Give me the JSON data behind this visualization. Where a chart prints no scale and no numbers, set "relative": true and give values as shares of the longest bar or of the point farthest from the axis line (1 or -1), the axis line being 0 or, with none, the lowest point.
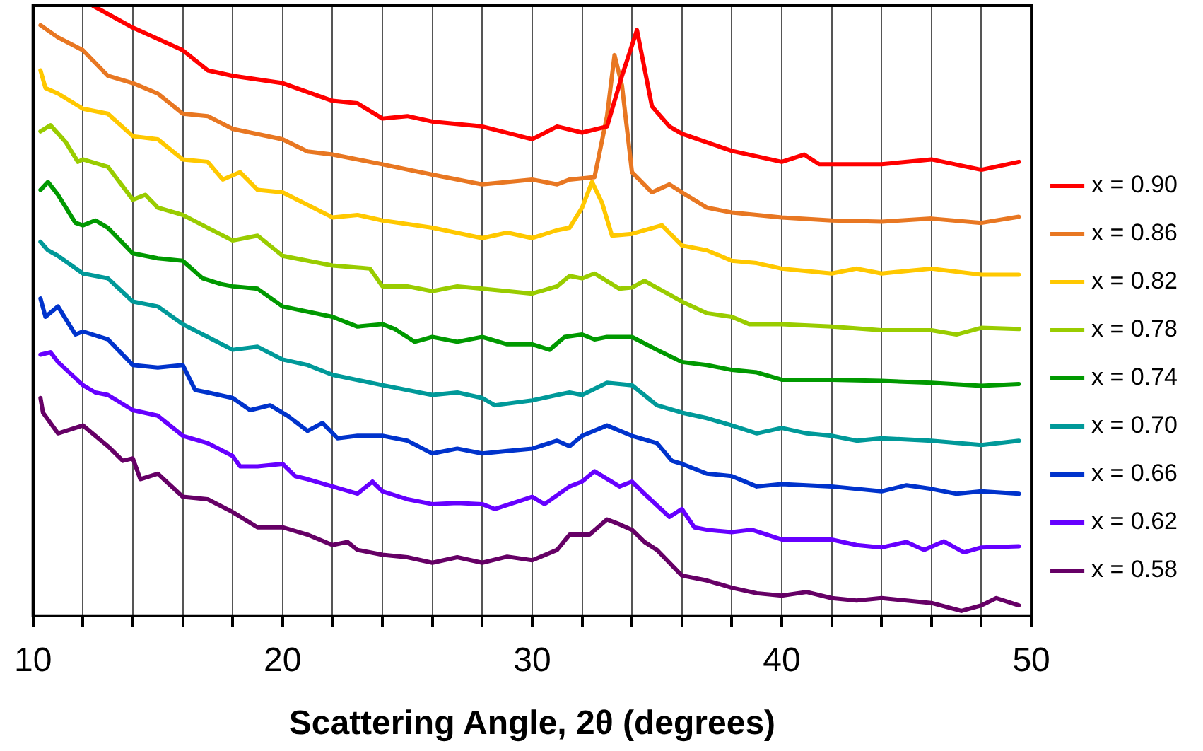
{
  "chart_data": {
    "type": "line",
    "relative": true,
    "xlabel": "Scattering Angle, 2θ (degrees)",
    "xlim": [
      10,
      50
    ],
    "xticks": [
      10,
      {
        "value": 12,
        "label": null
      },
      {
        "value": 14,
        "label": null
      },
      {
        "value": 16,
        "label": null
      },
      {
        "value": 18,
        "label": null
      },
      20,
      {
        "value": 22,
        "label": null
      },
      {
        "value": 24,
        "label": null
      },
      {
        "value": 26,
        "label": null
      },
      {
        "value": 28,
        "label": null
      },
      30,
      {
        "value": 32,
        "label": null
      },
      {
        "value": 34,
        "label": null
      },
      {
        "value": 36,
        "label": null
      },
      {
        "value": 38,
        "label": null
      },
      40,
      {
        "value": 42,
        "label": null
      },
      {
        "value": 44,
        "label": null
      },
      {
        "value": 46,
        "label": null
      },
      {
        "value": 48,
        "label": null
      },
      50
    ],
    "grid": "x",
    "legend": "right",
    "marker": "none",
    "line_style": "solid",
    "series": [
      {
        "name": "x = 0.90",
        "color": "#ff0000",
        "x": [
          12.4,
          14,
          16,
          17,
          18,
          20,
          22,
          23,
          24,
          25,
          26,
          28,
          30,
          31,
          32,
          33,
          33.6,
          34.2,
          34.8,
          35.5,
          36,
          38,
          40,
          40.9,
          41.5,
          44,
          46,
          48,
          49.5
        ],
        "values": [
          1.0,
          0.964,
          0.927,
          0.894,
          0.885,
          0.873,
          0.844,
          0.84,
          0.815,
          0.819,
          0.81,
          0.802,
          0.781,
          0.802,
          0.792,
          0.802,
          0.885,
          0.96,
          0.835,
          0.802,
          0.79,
          0.762,
          0.744,
          0.756,
          0.74,
          0.74,
          0.748,
          0.731,
          0.744
        ]
      },
      {
        "name": "x = 0.86",
        "color": "#e87722",
        "x": [
          10.3,
          11,
          12,
          13,
          14,
          15,
          16,
          17,
          18,
          20,
          21,
          22,
          24,
          26,
          28,
          30,
          31,
          31.5,
          32.5,
          33,
          33.3,
          33.6,
          34,
          34.8,
          35.5,
          36,
          37,
          38,
          40,
          42,
          44,
          46,
          48,
          49.5
        ],
        "values": [
          0.968,
          0.948,
          0.927,
          0.885,
          0.873,
          0.856,
          0.823,
          0.819,
          0.798,
          0.781,
          0.761,
          0.756,
          0.74,
          0.723,
          0.707,
          0.715,
          0.707,
          0.715,
          0.719,
          0.819,
          0.919,
          0.869,
          0.727,
          0.694,
          0.707,
          0.694,
          0.669,
          0.661,
          0.653,
          0.648,
          0.646,
          0.651,
          0.644,
          0.654
        ]
      },
      {
        "name": "x = 0.82",
        "color": "#ffc800",
        "x": [
          10.3,
          10.5,
          11,
          12,
          13,
          14,
          15,
          16,
          17,
          17.6,
          18.3,
          19,
          20,
          22,
          23,
          24,
          26,
          28,
          29,
          30,
          31,
          31.5,
          32,
          32.4,
          32.8,
          33.2,
          34,
          35.2,
          36,
          37,
          38,
          39,
          40,
          42,
          43,
          44,
          46,
          48,
          49.5
        ],
        "values": [
          0.894,
          0.865,
          0.856,
          0.831,
          0.823,
          0.786,
          0.781,
          0.748,
          0.744,
          0.715,
          0.727,
          0.698,
          0.694,
          0.653,
          0.657,
          0.648,
          0.636,
          0.619,
          0.628,
          0.619,
          0.632,
          0.636,
          0.669,
          0.711,
          0.677,
          0.623,
          0.626,
          0.64,
          0.607,
          0.599,
          0.582,
          0.578,
          0.569,
          0.561,
          0.569,
          0.561,
          0.569,
          0.559,
          0.559
        ]
      },
      {
        "name": "x = 0.78",
        "color": "#99cc00",
        "x": [
          10.3,
          10.7,
          11.3,
          11.8,
          12,
          13,
          14,
          14.5,
          15,
          16,
          17,
          18,
          19,
          20,
          22,
          23.5,
          24,
          25,
          26,
          27,
          28,
          30,
          31,
          31.5,
          32,
          32.5,
          33.5,
          34,
          34.5,
          36,
          37,
          38,
          38.7,
          40,
          42,
          44,
          46,
          47,
          48,
          49.5
        ],
        "values": [
          0.794,
          0.804,
          0.777,
          0.744,
          0.748,
          0.736,
          0.682,
          0.69,
          0.669,
          0.657,
          0.636,
          0.615,
          0.623,
          0.59,
          0.574,
          0.569,
          0.54,
          0.54,
          0.532,
          0.54,
          0.536,
          0.528,
          0.54,
          0.557,
          0.553,
          0.561,
          0.536,
          0.538,
          0.549,
          0.515,
          0.496,
          0.49,
          0.478,
          0.478,
          0.474,
          0.468,
          0.468,
          0.461,
          0.472,
          0.47
        ]
      },
      {
        "name": "x = 0.74",
        "color": "#009900",
        "x": [
          10.3,
          10.6,
          11,
          11.7,
          12,
          12.5,
          13,
          14,
          15,
          16,
          16.8,
          17.5,
          18,
          19,
          20,
          22,
          23,
          24,
          24.5,
          25.3,
          26,
          27,
          28,
          29,
          30,
          30.7,
          31.3,
          32,
          32.5,
          33,
          34,
          35,
          36,
          37,
          38,
          39,
          40,
          42,
          44,
          46,
          48,
          49.5
        ],
        "values": [
          0.698,
          0.711,
          0.69,
          0.644,
          0.64,
          0.648,
          0.636,
          0.594,
          0.586,
          0.582,
          0.553,
          0.544,
          0.54,
          0.536,
          0.507,
          0.49,
          0.474,
          0.478,
          0.47,
          0.449,
          0.457,
          0.449,
          0.457,
          0.445,
          0.445,
          0.436,
          0.457,
          0.461,
          0.453,
          0.457,
          0.457,
          0.436,
          0.416,
          0.411,
          0.403,
          0.399,
          0.387,
          0.387,
          0.385,
          0.382,
          0.377,
          0.38
        ]
      },
      {
        "name": "x = 0.70",
        "color": "#009999",
        "x": [
          10.3,
          10.6,
          11,
          12,
          13,
          14,
          15,
          16,
          17,
          18,
          19,
          20,
          21,
          22,
          24,
          26,
          27,
          28,
          28.5,
          30,
          31,
          31.5,
          32,
          33,
          34,
          35,
          36,
          37,
          38,
          39,
          40,
          41,
          42,
          43,
          44,
          46,
          48,
          49.5
        ],
        "values": [
          0.613,
          0.599,
          0.59,
          0.561,
          0.553,
          0.515,
          0.507,
          0.478,
          0.457,
          0.436,
          0.441,
          0.42,
          0.411,
          0.395,
          0.378,
          0.362,
          0.366,
          0.357,
          0.345,
          0.353,
          0.362,
          0.366,
          0.362,
          0.382,
          0.378,
          0.345,
          0.333,
          0.324,
          0.312,
          0.299,
          0.308,
          0.299,
          0.295,
          0.287,
          0.291,
          0.287,
          0.28,
          0.287
        ]
      },
      {
        "name": "x = 0.66",
        "color": "#0033cc",
        "x": [
          10.3,
          10.5,
          11,
          11.7,
          12,
          13,
          14,
          15,
          16,
          16.5,
          17,
          18,
          18.7,
          19.5,
          20.2,
          21,
          21.6,
          22.2,
          23,
          24,
          25,
          26,
          27,
          28,
          29,
          30,
          31,
          31.5,
          32,
          33,
          34,
          35,
          35.6,
          36,
          37,
          38,
          39,
          40,
          42,
          44,
          45,
          46,
          47,
          48,
          49.5
        ],
        "values": [
          0.52,
          0.49,
          0.507,
          0.461,
          0.466,
          0.453,
          0.411,
          0.407,
          0.411,
          0.37,
          0.366,
          0.357,
          0.337,
          0.345,
          0.328,
          0.303,
          0.316,
          0.291,
          0.295,
          0.295,
          0.287,
          0.266,
          0.274,
          0.266,
          0.27,
          0.274,
          0.287,
          0.278,
          0.295,
          0.312,
          0.295,
          0.283,
          0.254,
          0.249,
          0.233,
          0.229,
          0.212,
          0.216,
          0.212,
          0.204,
          0.214,
          0.208,
          0.2,
          0.204,
          0.2
        ]
      },
      {
        "name": "x = 0.62",
        "color": "#6600ff",
        "x": [
          10.3,
          10.7,
          11,
          12,
          12.5,
          13,
          14,
          15,
          16,
          17,
          18,
          18.3,
          19,
          20,
          20.5,
          21,
          22,
          23,
          23.6,
          24,
          25,
          26,
          27,
          28,
          28.5,
          30,
          30.5,
          31.5,
          32,
          32.5,
          33.5,
          34,
          34.5,
          35.5,
          36,
          36.5,
          37,
          38,
          38.8,
          40,
          42,
          43,
          44,
          45,
          45.7,
          46.5,
          47.3,
          48,
          49.5
        ],
        "values": [
          0.428,
          0.432,
          0.416,
          0.378,
          0.366,
          0.362,
          0.337,
          0.328,
          0.295,
          0.283,
          0.262,
          0.245,
          0.245,
          0.249,
          0.229,
          0.224,
          0.212,
          0.2,
          0.22,
          0.204,
          0.191,
          0.183,
          0.185,
          0.183,
          0.175,
          0.195,
          0.183,
          0.212,
          0.22,
          0.237,
          0.212,
          0.22,
          0.2,
          0.162,
          0.175,
          0.145,
          0.141,
          0.137,
          0.141,
          0.125,
          0.125,
          0.116,
          0.112,
          0.121,
          0.108,
          0.122,
          0.104,
          0.112,
          0.114
        ]
      },
      {
        "name": "x = 0.58",
        "color": "#660066",
        "x": [
          10.3,
          10.4,
          11,
          12,
          13,
          13.6,
          14,
          14.3,
          15,
          16,
          17,
          18,
          19,
          20,
          21,
          22,
          22.6,
          23,
          24,
          25,
          26,
          27,
          28,
          29,
          30,
          31,
          31.5,
          32.3,
          33,
          33.5,
          34,
          34.5,
          35,
          36,
          37,
          38,
          39,
          40,
          41,
          42,
          43,
          44,
          45,
          46,
          47.2,
          48,
          48.6,
          49.5
        ],
        "values": [
          0.357,
          0.333,
          0.299,
          0.312,
          0.278,
          0.254,
          0.258,
          0.224,
          0.233,
          0.195,
          0.191,
          0.17,
          0.145,
          0.145,
          0.133,
          0.116,
          0.121,
          0.108,
          0.1,
          0.096,
          0.087,
          0.096,
          0.087,
          0.097,
          0.091,
          0.108,
          0.133,
          0.133,
          0.158,
          0.15,
          0.141,
          0.121,
          0.108,
          0.066,
          0.058,
          0.046,
          0.037,
          0.033,
          0.039,
          0.029,
          0.025,
          0.029,
          0.025,
          0.021,
          0.008,
          0.017,
          0.029,
          0.017
        ]
      }
    ]
  }
}
